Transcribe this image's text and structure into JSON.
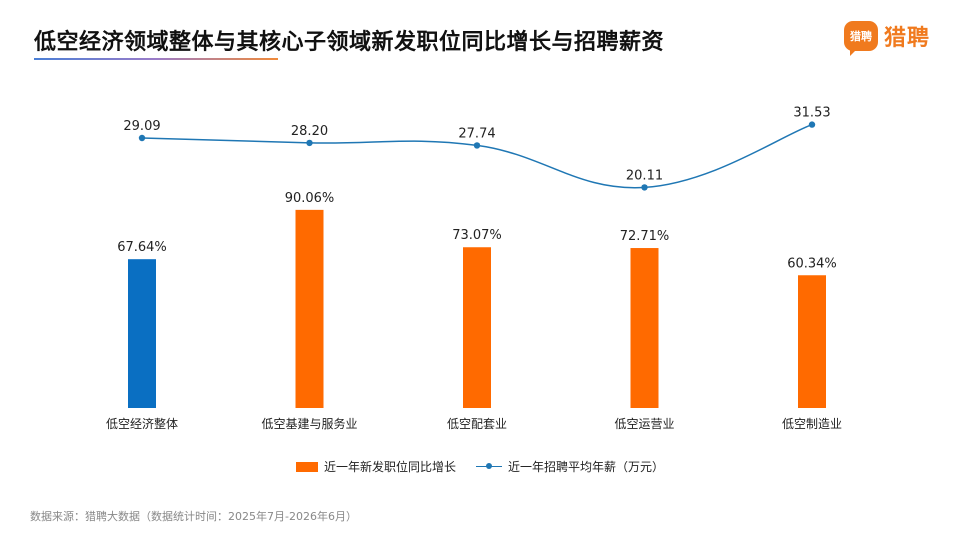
{
  "header": {
    "title": "低空经济领域整体与其核心子领域新发职位同比增长与招聘薪资",
    "logo_badge": "猎聘",
    "logo_text": "猎聘",
    "accent_color": "#f07a1e"
  },
  "footer": {
    "source": "数据来源：猎聘大数据（数据统计时间：2025年7月-2026年6月）"
  },
  "chart_data": {
    "type": "bar",
    "categories": [
      "低空经济整体",
      "低空基建与服务业",
      "低空配套业",
      "低空运营业",
      "低空制造业"
    ],
    "series": [
      {
        "name": "近一年新发职位同比增长",
        "type": "bar",
        "values": [
          67.64,
          90.06,
          73.07,
          72.71,
          60.34
        ],
        "labels": [
          "67.64%",
          "90.06%",
          "73.07%",
          "72.71%",
          "60.34%"
        ],
        "colors": [
          "#0a6fc2",
          "#ff6a00",
          "#ff6a00",
          "#ff6a00",
          "#ff6a00"
        ],
        "ylim": [
          0,
          140
        ]
      },
      {
        "name": "近一年招聘平均年薪（万元）",
        "type": "line",
        "values": [
          29.09,
          28.2,
          27.74,
          20.11,
          31.53
        ],
        "labels": [
          "29.09",
          "28.20",
          "27.74",
          "20.11",
          "31.53"
        ],
        "color": "#1f77b4",
        "ylim": [
          -20,
          36
        ]
      }
    ],
    "legend_position": "bottom",
    "grid": false
  }
}
